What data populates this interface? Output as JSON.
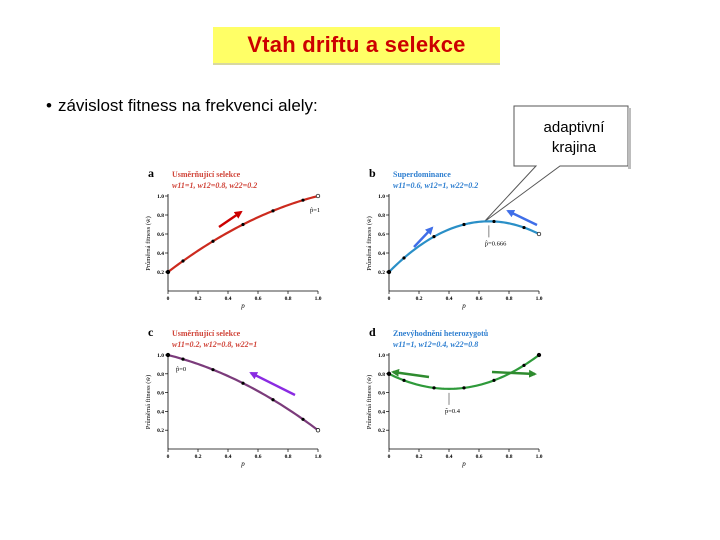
{
  "slide": {
    "title": "Vtah driftu a selekce",
    "bullet_text": "závislost fitness na frekvenci alely:",
    "callout": {
      "line1": "adaptivní",
      "line2": "krajina"
    }
  },
  "colors": {
    "title_bg": "#ffff66",
    "title_text": "#cc0000",
    "red": "#cc2a1e",
    "blue": "#2a8fc7",
    "purple": "#7b3b7b",
    "green": "#2e9a3a",
    "label_red": "#d0453a",
    "label_blue": "#2f7fd0",
    "arrow_red": "#cc0000",
    "arrow_blue": "#3f6ee8",
    "arrow_purple": "#8a2be2",
    "arrow_green": "#2e8b2e"
  },
  "chart_data": [
    {
      "panel": "a",
      "type": "line",
      "title_line1": "Usměrňující selekce",
      "title_line2": "w11=1, w12=0.8, w22=0.2",
      "ylabel": "Průměrná fitness (w̄)",
      "xlabel": "p",
      "xticks": [
        "0",
        "0.2",
        "0.4",
        "0.6",
        "0.8",
        "1.0"
      ],
      "yticks": [
        "0.2",
        "0.4",
        "0.6",
        "0.8",
        "1.0"
      ],
      "xlim": [
        0,
        1
      ],
      "ylim": [
        0,
        1
      ],
      "coef": {
        "w11": 1,
        "w12": 0.8,
        "w22": 0.2
      },
      "annotation": "p̂=1",
      "annotation_p": 1.0
    },
    {
      "panel": "b",
      "type": "line",
      "title_line1": "Superdominance",
      "title_line2": "w11=0.6, w12=1, w22=0.2",
      "ylabel": "Průměrná fitness (w̄)",
      "xlabel": "p",
      "xticks": [
        "0",
        "0.2",
        "0.4",
        "0.6",
        "0.8",
        "1.0"
      ],
      "yticks": [
        "0.2",
        "0.4",
        "0.6",
        "0.8",
        "1.0"
      ],
      "xlim": [
        0,
        1
      ],
      "ylim": [
        0,
        1
      ],
      "coef": {
        "w11": 0.6,
        "w12": 1,
        "w22": 0.2
      },
      "annotation": "p̂=0.666",
      "annotation_p": 0.666
    },
    {
      "panel": "c",
      "type": "line",
      "title_line1": "Usměrňující selekce",
      "title_line2": "w11=0.2, w12=0.8, w22=1",
      "ylabel": "Průměrná fitness (w̄)",
      "xlabel": "p",
      "xticks": [
        "0",
        "0.2",
        "0.4",
        "0.6",
        "0.8",
        "1.0"
      ],
      "yticks": [
        "0.2",
        "0.4",
        "0.6",
        "0.8",
        "1.0"
      ],
      "xlim": [
        0,
        1
      ],
      "ylim": [
        0,
        1
      ],
      "coef": {
        "w11": 0.2,
        "w12": 0.8,
        "w22": 1
      },
      "annotation": "p̂=0",
      "annotation_p": 0.0
    },
    {
      "panel": "d",
      "type": "line",
      "title_line1": "Znevýhodnění heterozygotů",
      "title_line2": "w11=1, w12=0.4, w22=0.8",
      "ylabel": "Průměrná fitness (w̄)",
      "xlabel": "p",
      "xticks": [
        "0",
        "0.2",
        "0.4",
        "0.6",
        "0.8",
        "1.0"
      ],
      "yticks": [
        "0.2",
        "0.4",
        "0.6",
        "0.8",
        "1.0"
      ],
      "xlim": [
        0,
        1
      ],
      "ylim": [
        0,
        1
      ],
      "coef": {
        "w11": 1,
        "w12": 0.4,
        "w22": 0.8
      },
      "annotation": "p̂=0.4",
      "annotation_p": 0.4
    }
  ]
}
